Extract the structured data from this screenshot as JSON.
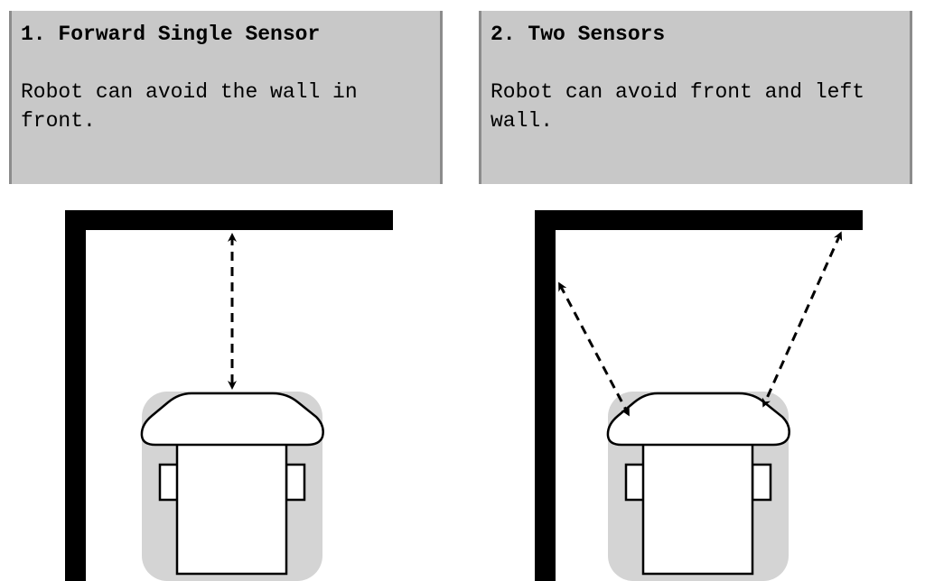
{
  "panels": [
    {
      "title": "1. Forward Single Sensor",
      "description": "Robot can avoid the wall in front."
    },
    {
      "title": "2. Two Sensors",
      "description": "Robot can avoid front and left wall."
    }
  ],
  "colors": {
    "panel_background": "#c8c8c8",
    "panel_border": "#8c8c8c",
    "wall": "#000000",
    "robot_shadow": "#d4d4d4",
    "robot_body": "#ffffff",
    "sensor_line": "#000000"
  }
}
